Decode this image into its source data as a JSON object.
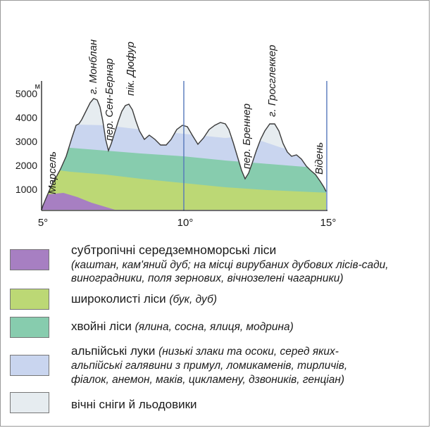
{
  "profile": {
    "y_unit": "м",
    "y_ticks": [
      "5000",
      "4000",
      "3000",
      "2000",
      "1000"
    ],
    "x_ticks": [
      "5°",
      "10°",
      "15°"
    ],
    "place_labels": [
      {
        "text": "Марсель"
      },
      {
        "text": "г. Монблан"
      },
      {
        "text": "пер. Сен-Бернар"
      },
      {
        "text": "пік. Дюфур"
      },
      {
        "text": "пер. Бреннер"
      },
      {
        "text": "г. Гросглеккер"
      },
      {
        "text": "Відень"
      }
    ]
  },
  "colors": {
    "subtropical": "#a77fc2",
    "broadleaf": "#bcd875",
    "coniferous": "#87ccae",
    "alpine": "#c9d5ef",
    "snow": "#e6ecf0",
    "meridian": "#5577bb"
  },
  "legend": [
    {
      "title": "субтропічні середземноморські ліси",
      "note": "(каштан, кам'яний дуб; на місці вирубаних дубових лісів-сади, виноградники, поля зернових, вічнозелені чагарники)",
      "lines": [
        "",
        "(каштан, кам'яний дуб; на місці вирубаних дубових лісів-сади,",
        "виноградники, поля зернових, вічнозелені чагарники)"
      ]
    },
    {
      "title": "широколисті ліси",
      "note": "(бук, дуб)"
    },
    {
      "title": "хвойні ліси",
      "note": "(ялина, сосна, ялиця, модрина)"
    },
    {
      "title": "альпійські луки",
      "note": "(низькі злаки та осоки, серед яких-альпійські галявини з примул, ломикаменів, тирличів, фіалок, анемон, маків, цикламену, дзвоників, генціан)",
      "lines": [
        "(низькі злаки та осоки, серед яких-",
        "альпійські галявини з примул, ломикаменів, тирличів,",
        "фіалок, анемон, маків, цикламену, дзвоників, генціан)"
      ]
    },
    {
      "title": "вічні сніги й льодовики",
      "note": ""
    }
  ]
}
